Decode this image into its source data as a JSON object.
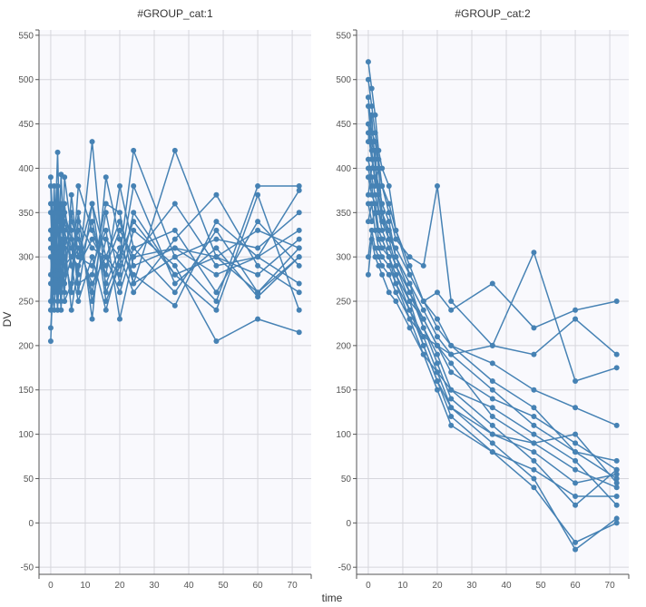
{
  "chart_data": [
    {
      "type": "line",
      "title": "#GROUP_cat:1",
      "xlabel": "time",
      "ylabel": "DV",
      "xlim": [
        -3.4,
        75.5
      ],
      "ylim": [
        -58,
        556
      ],
      "xticks": [
        0,
        10,
        20,
        30,
        40,
        50,
        60,
        70
      ],
      "yticks": [
        -50,
        0,
        50,
        100,
        150,
        200,
        250,
        300,
        350,
        400,
        450,
        500,
        550
      ],
      "grid": true,
      "color": "#4682b4",
      "x": [
        0,
        1,
        2,
        3,
        4,
        6,
        8,
        12,
        16,
        20,
        24,
        36,
        48,
        60,
        72
      ],
      "series": [
        {
          "values": [
            320,
            350,
            300,
            280,
            330,
            290,
            310,
            270,
            300,
            340,
            290,
            310,
            300,
            280,
            320
          ]
        },
        {
          "values": [
            390,
            300,
            418,
            260,
            340,
            310,
            280,
            430,
            260,
            300,
            420,
            300,
            250,
            380,
            380
          ]
        },
        {
          "values": [
            250,
            380,
            270,
            393,
            300,
            260,
            350,
            230,
            390,
            320,
            270,
            420,
            300,
            260,
            310
          ]
        },
        {
          "values": [
            220,
            280,
            340,
            250,
            390,
            330,
            260,
            360,
            300,
            280,
            350,
            280,
            240,
            370,
            240
          ]
        },
        {
          "values": [
            300,
            240,
            310,
            360,
            280,
            350,
            300,
            290,
            330,
            230,
            300,
            360,
            290,
            300,
            330
          ]
        },
        {
          "values": [
            205,
            320,
            260,
            300,
            250,
            270,
            380,
            330,
            280,
            380,
            310,
            260,
            330,
            260,
            300
          ]
        },
        {
          "values": [
            350,
            270,
            290,
            330,
            360,
            290,
            250,
            300,
            240,
            300,
            260,
            320,
            370,
            290,
            260
          ]
        },
        {
          "values": [
            280,
            360,
            250,
            280,
            310,
            340,
            320,
            260,
            350,
            270,
            330,
            290,
            205,
            230,
            215
          ]
        },
        {
          "values": [
            330,
            260,
            380,
            300,
            270,
            300,
            290,
            340,
            270,
            310,
            280,
            245,
            340,
            300,
            375
          ]
        },
        {
          "values": [
            360,
            310,
            240,
            350,
            300,
            260,
            340,
            310,
            300,
            260,
            310,
            330,
            260,
            340,
            290
          ]
        },
        {
          "values": [
            270,
            340,
            330,
            240,
            350,
            320,
            270,
            280,
            360,
            350,
            270,
            300,
            320,
            310,
            350
          ]
        },
        {
          "values": [
            310,
            290,
            360,
            310,
            260,
            370,
            300,
            360,
            250,
            290,
            380,
            270,
            310,
            255,
            300
          ]
        },
        {
          "values": [
            240,
            330,
            280,
            270,
            320,
            240,
            290,
            320,
            290,
            330,
            300,
            310,
            280,
            300,
            270
          ]
        },
        {
          "values": [
            380,
            260,
            350,
            320,
            290,
            300,
            330,
            250,
            320,
            300,
            340,
            280,
            300,
            330,
            310
          ]
        }
      ]
    },
    {
      "type": "line",
      "title": "#GROUP_cat:2",
      "xlabel": "time",
      "ylabel": "DV",
      "xlim": [
        -3.4,
        75.5
      ],
      "ylim": [
        -58,
        556
      ],
      "xticks": [
        0,
        10,
        20,
        30,
        40,
        50,
        60,
        70
      ],
      "yticks": [
        -50,
        0,
        50,
        100,
        150,
        200,
        250,
        300,
        350,
        400,
        450,
        500,
        550
      ],
      "grid": true,
      "color": "#4682b4",
      "x": [
        0,
        1,
        2,
        3,
        4,
        6,
        8,
        12,
        16,
        20,
        24,
        36,
        48,
        60,
        72
      ],
      "series": [
        {
          "values": [
            520,
            490,
            460,
            420,
            400,
            380,
            330,
            280,
            250,
            230,
            200,
            160,
            130,
            80,
            50
          ]
        },
        {
          "values": [
            480,
            440,
            430,
            400,
            380,
            350,
            320,
            300,
            290,
            380,
            250,
            200,
            190,
            230,
            190
          ]
        },
        {
          "values": [
            450,
            420,
            380,
            400,
            350,
            330,
            300,
            260,
            230,
            200,
            180,
            120,
            90,
            60,
            40
          ]
        },
        {
          "values": [
            430,
            460,
            400,
            380,
            360,
            340,
            300,
            270,
            220,
            190,
            150,
            110,
            70,
            20,
            60
          ]
        },
        {
          "values": [
            400,
            380,
            350,
            330,
            320,
            300,
            280,
            240,
            210,
            170,
            130,
            90,
            50,
            -30,
            5
          ]
        },
        {
          "values": [
            370,
            400,
            420,
            350,
            330,
            310,
            290,
            250,
            200,
            160,
            120,
            80,
            40,
            -22,
            0
          ]
        },
        {
          "values": [
            340,
            360,
            330,
            310,
            300,
            290,
            270,
            230,
            190,
            150,
            110,
            80,
            60,
            30,
            30
          ]
        },
        {
          "values": [
            470,
            430,
            410,
            370,
            340,
            320,
            310,
            280,
            250,
            260,
            240,
            270,
            220,
            240,
            250
          ]
        },
        {
          "values": [
            300,
            330,
            310,
            300,
            290,
            280,
            260,
            230,
            210,
            200,
            190,
            200,
            305,
            160,
            175
          ]
        },
        {
          "values": [
            410,
            390,
            370,
            350,
            340,
            330,
            300,
            270,
            240,
            210,
            190,
            150,
            110,
            80,
            70
          ]
        },
        {
          "values": [
            360,
            340,
            350,
            320,
            310,
            300,
            280,
            250,
            230,
            200,
            170,
            140,
            120,
            90,
            60
          ]
        },
        {
          "values": [
            440,
            410,
            390,
            370,
            350,
            320,
            290,
            260,
            220,
            180,
            140,
            100,
            90,
            100,
            45
          ]
        },
        {
          "values": [
            390,
            370,
            360,
            330,
            320,
            300,
            270,
            240,
            200,
            160,
            130,
            100,
            80,
            45,
            55
          ]
        },
        {
          "values": [
            500,
            470,
            440,
            410,
            380,
            360,
            330,
            290,
            250,
            220,
            200,
            180,
            150,
            130,
            110
          ]
        },
        {
          "values": [
            280,
            320,
            300,
            290,
            280,
            260,
            250,
            220,
            190,
            170,
            150,
            130,
            100,
            70,
            20
          ]
        }
      ]
    }
  ],
  "shared": {
    "xlabel": "time",
    "ylabel": "DV"
  }
}
